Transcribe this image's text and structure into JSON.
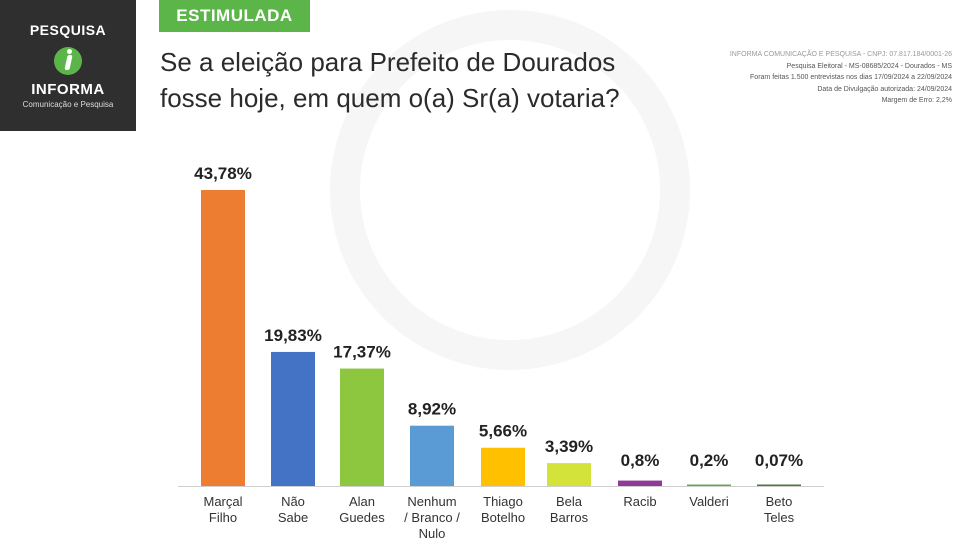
{
  "brand": {
    "line1": "PESQUISA",
    "line2": "INFORMA",
    "line3": "Comunicação e Pesquisa",
    "bg_color": "#2f2f2f",
    "accent_color": "#5cb548"
  },
  "tag_label": "ESTIMULADA",
  "question": {
    "line1": "Se a eleição para Prefeito de Dourados",
    "line2": "fosse hoje, em quem o(a) Sr(a) votaria?"
  },
  "info": {
    "line1": "INFORMA COMUNICAÇÃO E PESQUISA - CNPJ: 07.817.184/0001-26",
    "line2": "Pesquisa Eleitoral - MS-08685/2024 - Dourados - MS",
    "line3": "Foram feitas 1.500 entrevistas nos dias 17/09/2024 a 22/09/2024",
    "line4": "Data de Divulgação autorizada: 24/09/2024",
    "line5": "Margem de Erro: 2,2%"
  },
  "chart_data": {
    "type": "bar",
    "categories": [
      [
        "Marçal",
        "Filho"
      ],
      [
        "Não",
        "Sabe"
      ],
      [
        "Alan",
        "Guedes"
      ],
      [
        "Nenhum",
        "/ Branco /",
        "Nulo"
      ],
      [
        "Thiago",
        "Botelho"
      ],
      [
        "Bela",
        "Barros"
      ],
      [
        "Racib"
      ],
      [
        "Valderi"
      ],
      [
        "Beto",
        "Teles"
      ]
    ],
    "values": [
      43.78,
      19.83,
      17.37,
      8.92,
      5.66,
      3.39,
      0.8,
      0.2,
      0.07
    ],
    "value_labels": [
      "43,78%",
      "19,83%",
      "17,37%",
      "8,92%",
      "5,66%",
      "3,39%",
      "0,8%",
      "0,2%",
      "0,07%"
    ],
    "colors": [
      "#ed7d31",
      "#4472c4",
      "#8dc63f",
      "#5b9bd5",
      "#ffc000",
      "#d4e33a",
      "#8e3a96",
      "#6aa84f",
      "#4a7a3a"
    ],
    "ylim": [
      0,
      43.78
    ],
    "grid": false,
    "legend": "none",
    "xlabel": "",
    "ylabel": ""
  }
}
